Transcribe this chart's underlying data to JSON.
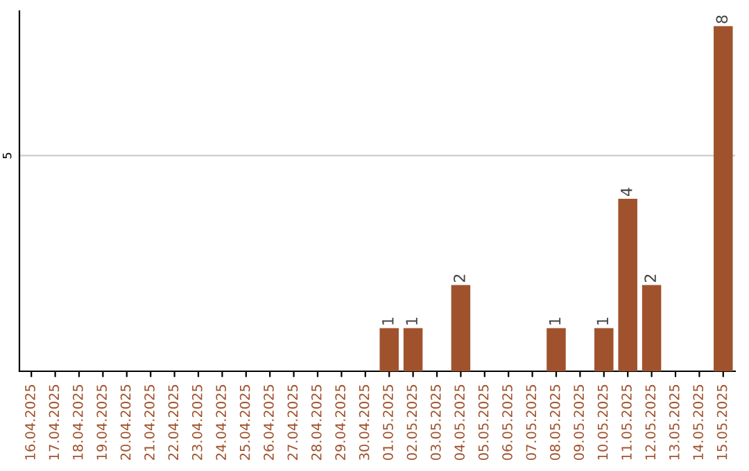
{
  "chart_data": {
    "type": "bar",
    "categories": [
      "16.04.2025",
      "17.04.2025",
      "18.04.2025",
      "19.04.2025",
      "20.04.2025",
      "21.04.2025",
      "22.04.2025",
      "23.04.2025",
      "24.04.2025",
      "25.04.2025",
      "26.04.2025",
      "27.04.2025",
      "28.04.2025",
      "29.04.2025",
      "30.04.2025",
      "01.05.2025",
      "02.05.2025",
      "03.05.2025",
      "04.05.2025",
      "05.05.2025",
      "06.05.2025",
      "07.05.2025",
      "08.05.2025",
      "09.05.2025",
      "10.05.2025",
      "11.05.2025",
      "12.05.2025",
      "13.05.2025",
      "14.05.2025",
      "15.05.2025"
    ],
    "values": [
      null,
      null,
      null,
      null,
      null,
      null,
      null,
      null,
      null,
      null,
      null,
      null,
      null,
      null,
      null,
      1,
      1,
      null,
      2,
      null,
      null,
      null,
      1,
      null,
      1,
      4,
      2,
      null,
      null,
      8
    ],
    "data_labels": true,
    "color": "#a0522d",
    "ylim": [
      0,
      8.35
    ],
    "yticks": [
      5
    ],
    "grid": "y"
  }
}
